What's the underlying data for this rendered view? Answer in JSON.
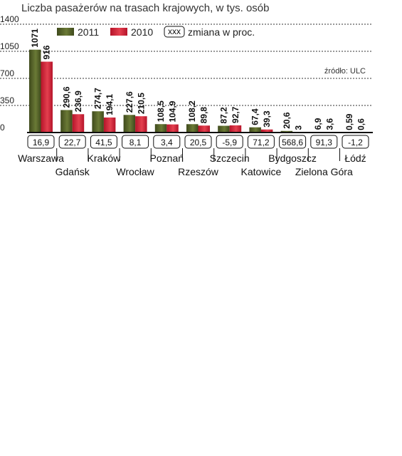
{
  "chart_data": {
    "type": "bar",
    "title": "Liczba pasażerów na trasach krajowych, w tys. osób",
    "source": "źródło: ULC",
    "ylim": [
      0,
      1400
    ],
    "yticks": [
      "0",
      "350",
      "700",
      "1050",
      "1400"
    ],
    "ytick_values": [
      0,
      350,
      700,
      1050,
      1400
    ],
    "legend_change_label": "zmiana w proc.",
    "legend_change_box": "xxx",
    "categories": [
      "Warszawa",
      "Gdańsk",
      "Kraków",
      "Wrocław",
      "Poznań",
      "Rzeszów",
      "Szczecin",
      "Katowice",
      "Bydgoszcz",
      "Zielona Góra",
      "Łódź"
    ],
    "series": [
      {
        "name": "2011",
        "color": "#5c6b2e",
        "values": [
          1071,
          290.6,
          274.7,
          227.6,
          108.5,
          108.2,
          87.2,
          67.4,
          20.6,
          6.9,
          0.59
        ],
        "labels": [
          "1071",
          "290,6",
          "274,7",
          "227,6",
          "108,5",
          "108,2",
          "87,2",
          "67,4",
          "20,6",
          "6,9",
          "0,59"
        ]
      },
      {
        "name": "2010",
        "color": "#d9263a",
        "values": [
          916,
          236.9,
          194.1,
          210.5,
          104.9,
          89.8,
          92.7,
          39.3,
          3,
          3.6,
          0.6
        ],
        "labels": [
          "916",
          "236,9",
          "194,1",
          "210,5",
          "104,9",
          "89,8",
          "92,7",
          "39,3",
          "3",
          "3,6",
          "0,6"
        ]
      }
    ],
    "change_percent": [
      "16,9",
      "22,7",
      "41,5",
      "8,1",
      "3,4",
      "20,5",
      "-5,9",
      "71,2",
      "568,6",
      "91,3",
      "-1,2"
    ]
  }
}
